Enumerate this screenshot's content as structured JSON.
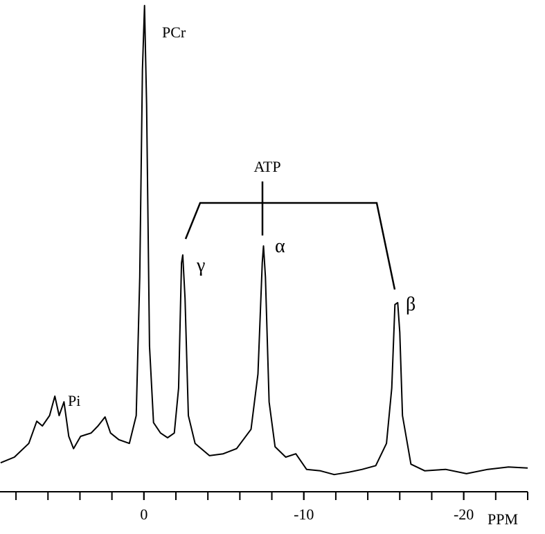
{
  "chart_data": {
    "type": "line",
    "x_label": "PPM",
    "annotations": [
      "PCr",
      "Pi",
      "ATP",
      "γ",
      "α",
      "β"
    ],
    "color": "#000000",
    "xlim": [
      9,
      -24
    ],
    "ylim": [
      0,
      100
    ],
    "xticks": [
      0,
      -10,
      -20
    ],
    "xminorticks": [
      8,
      6,
      4,
      2,
      0,
      -2,
      -4,
      -6,
      -8,
      -10,
      -12,
      -14,
      -16,
      -18,
      -20,
      -22,
      -24
    ],
    "x": [
      8.96,
      8.1,
      7.2,
      6.7,
      6.35,
      5.9,
      5.57,
      5.3,
      5.0,
      4.7,
      4.4,
      3.96,
      3.3,
      2.87,
      2.43,
      2.09,
      1.57,
      0.91,
      0.48,
      0.26,
      0.09,
      -0.04,
      -0.17,
      -0.35,
      -0.6,
      -1.04,
      -1.48,
      -1.9,
      -2.17,
      -2.35,
      -2.43,
      -2.57,
      -2.78,
      -3.2,
      -4.1,
      -4.96,
      -5.8,
      -6.7,
      -7.13,
      -7.4,
      -7.48,
      -7.6,
      -7.83,
      -8.2,
      -8.87,
      -9.5,
      -10.17,
      -11.04,
      -11.9,
      -12.8,
      -13.65,
      -14.5,
      -15.17,
      -15.5,
      -15.7,
      -15.87,
      -16.0,
      -16.17,
      -16.7,
      -17.57,
      -18.87,
      -20.17,
      -21.5,
      -22.8,
      -24.0
    ],
    "values": [
      3.2,
      4.4,
      7.3,
      12,
      11,
      13.2,
      17.3,
      13.2,
      16.1,
      8.8,
      6.2,
      8.8,
      9.5,
      11,
      12.9,
      9.5,
      8.1,
      7.3,
      13.2,
      42.5,
      86.5,
      100,
      79,
      27.9,
      11.7,
      9.5,
      8.5,
      9.5,
      19,
      45.5,
      47.2,
      38,
      13.2,
      7.3,
      4.7,
      5.1,
      6.2,
      10.3,
      22,
      45.5,
      49.1,
      42.5,
      16.1,
      6.6,
      4.4,
      5.1,
      1.8,
      1.5,
      0.7,
      1.2,
      1.8,
      2.6,
      7.3,
      19,
      36.7,
      37.1,
      30.8,
      13.2,
      2.9,
      1.5,
      1.8,
      0.9,
      1.8,
      2.3,
      2.1
    ]
  }
}
